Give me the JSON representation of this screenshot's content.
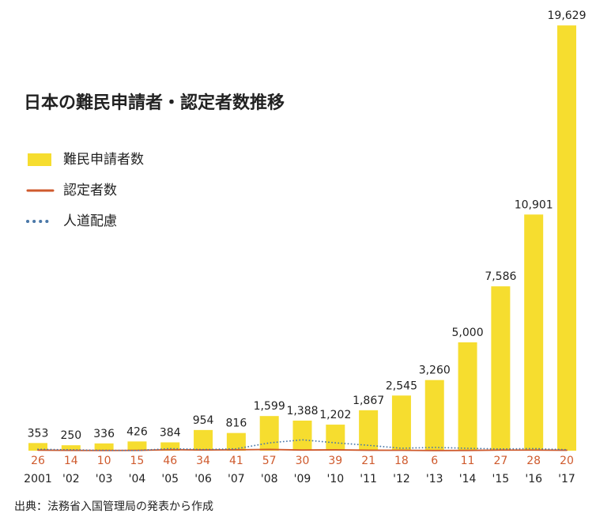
{
  "chart_data": {
    "type": "bar",
    "title": "日本の難民申請者・認定者数推移",
    "categories": [
      "2001",
      "'02",
      "'03",
      "'04",
      "'05",
      "'06",
      "'07",
      "'08",
      "'09",
      "'10",
      "'11",
      "'12",
      "'13",
      "'14",
      "'15",
      "'16",
      "'17"
    ],
    "series": [
      {
        "name": "難民申請者数",
        "type": "bar",
        "color": "#f6dd2f",
        "values": [
          353,
          250,
          336,
          426,
          384,
          954,
          816,
          1599,
          1388,
          1202,
          1867,
          2545,
          3260,
          5000,
          7586,
          10901,
          19629
        ],
        "value_labels": [
          "353",
          "250",
          "336",
          "426",
          "384",
          "954",
          "816",
          "1,599",
          "1,388",
          "1,202",
          "1,867",
          "2,545",
          "3,260",
          "5,000",
          "7,586",
          "10,901",
          "19,629"
        ]
      },
      {
        "name": "認定者数",
        "type": "line",
        "color": "#cf5a2d",
        "dashed": false,
        "labels": true,
        "values": [
          26,
          14,
          10,
          15,
          46,
          34,
          41,
          57,
          30,
          39,
          21,
          18,
          6,
          11,
          27,
          28,
          20
        ]
      },
      {
        "name": "人道配慮",
        "type": "line",
        "color": "#4a78a8",
        "dashed": true,
        "labels": false,
        "values": [
          67,
          40,
          16,
          9,
          97,
          53,
          88,
          360,
          501,
          363,
          248,
          112,
          151,
          110,
          79,
          97,
          45
        ]
      }
    ],
    "ylim": [
      0,
      20000
    ],
    "source": "出典：法務省入国管理局の発表から作成"
  }
}
